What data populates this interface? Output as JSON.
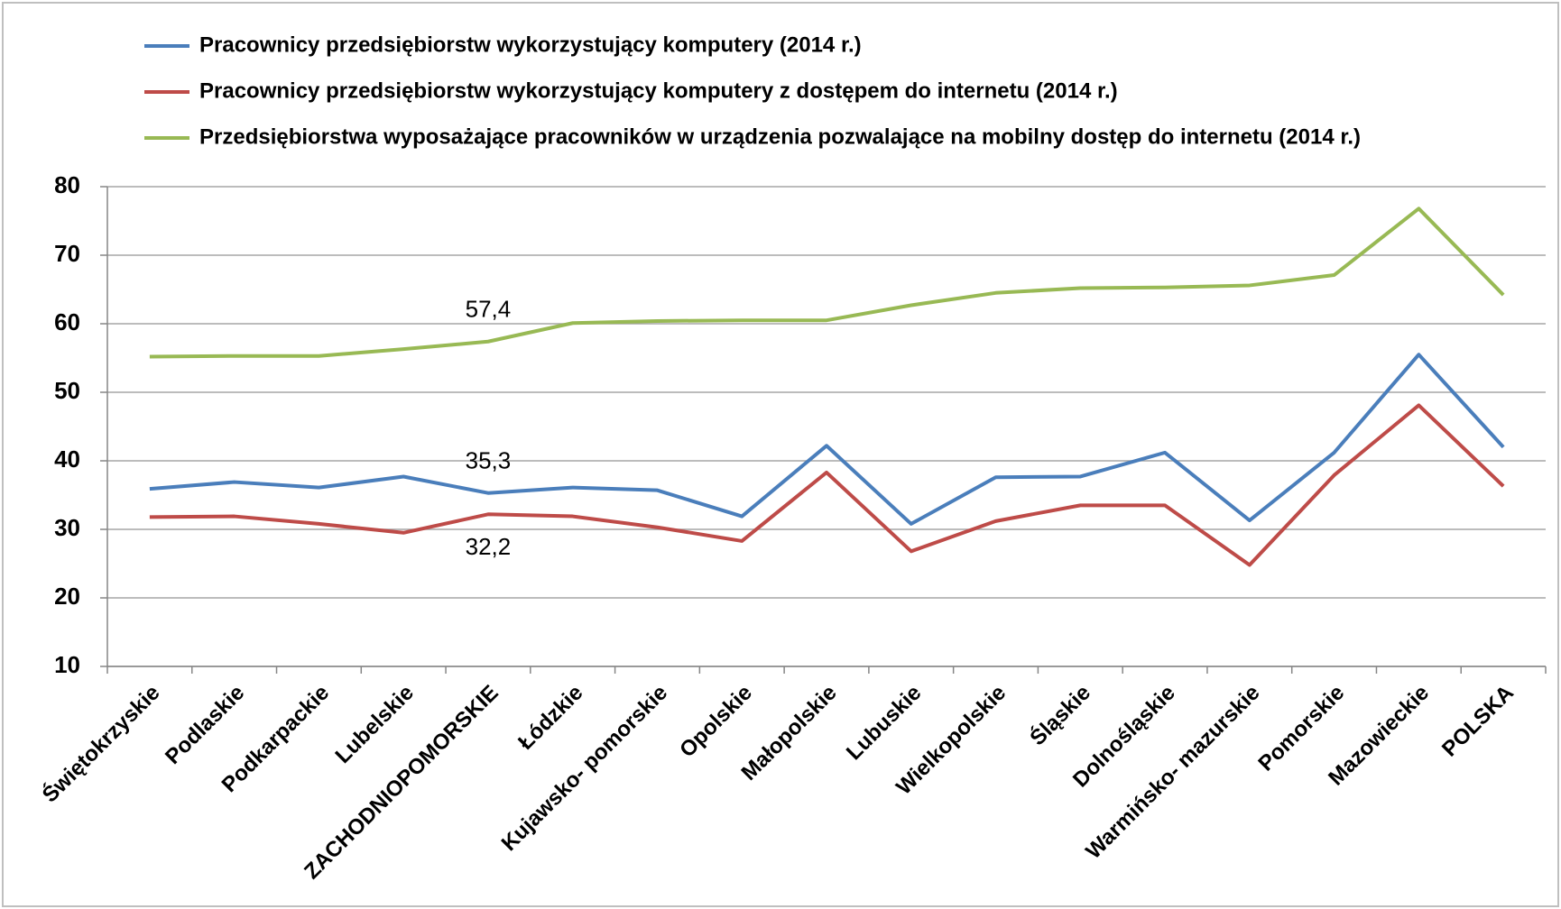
{
  "chart_data": {
    "type": "line",
    "categories": [
      "Świętokrzyskie",
      "Podlaskie",
      "Podkarpackie",
      "Lubelskie",
      "ZACHODNIOPOMORSKIE",
      "Łódzkie",
      "Kujawsko- pomorskie",
      "Opolskie",
      "Małopolskie",
      "Lubuskie",
      "Wielkopolskie",
      "Śląskie",
      "Dolnośląskie",
      "Warmińsko- mazurskie",
      "Pomorskie",
      "Mazowieckie",
      "POLSKA"
    ],
    "series": [
      {
        "name": "Pracownicy przedsiębiorstw wykorzystujący komputery (2014 r.)",
        "color": "#4a7ebb",
        "values": [
          35.9,
          36.9,
          36.1,
          37.7,
          35.3,
          36.1,
          35.7,
          31.9,
          42.2,
          30.8,
          37.6,
          37.7,
          41.2,
          31.3,
          41.2,
          55.5,
          42.0
        ],
        "value_labels": [
          null,
          null,
          null,
          null,
          "35,3",
          null,
          null,
          null,
          null,
          null,
          null,
          null,
          null,
          null,
          null,
          null,
          null
        ]
      },
      {
        "name": "Pracownicy przedsiębiorstw wykorzystujący komputery z dostępem do internetu (2014 r.)",
        "color": "#be4b48",
        "values": [
          31.8,
          31.9,
          30.8,
          29.5,
          32.2,
          31.9,
          30.3,
          28.3,
          38.3,
          26.8,
          31.2,
          33.5,
          33.5,
          24.8,
          37.9,
          48.1,
          36.3
        ],
        "value_labels": [
          null,
          null,
          null,
          null,
          "32,2",
          null,
          null,
          null,
          null,
          null,
          null,
          null,
          null,
          null,
          null,
          null,
          null
        ]
      },
      {
        "name": "Przedsiębiorstwa wyposażające pracowników w urządzenia pozwalające na mobilny dostęp do internetu (2014 r.)",
        "color": "#98b954",
        "values": [
          55.2,
          55.3,
          55.3,
          56.3,
          57.4,
          60.1,
          60.4,
          60.5,
          60.5,
          62.7,
          64.5,
          65.2,
          65.3,
          65.6,
          67.1,
          76.8,
          64.2
        ],
        "value_labels": [
          null,
          null,
          null,
          null,
          "57,4",
          null,
          null,
          null,
          null,
          null,
          null,
          null,
          null,
          null,
          null,
          null,
          null
        ]
      }
    ],
    "ylim": [
      10,
      80
    ],
    "yticks": [
      10,
      20,
      30,
      40,
      50,
      60,
      70,
      80
    ],
    "grid": true,
    "legend": "top"
  }
}
